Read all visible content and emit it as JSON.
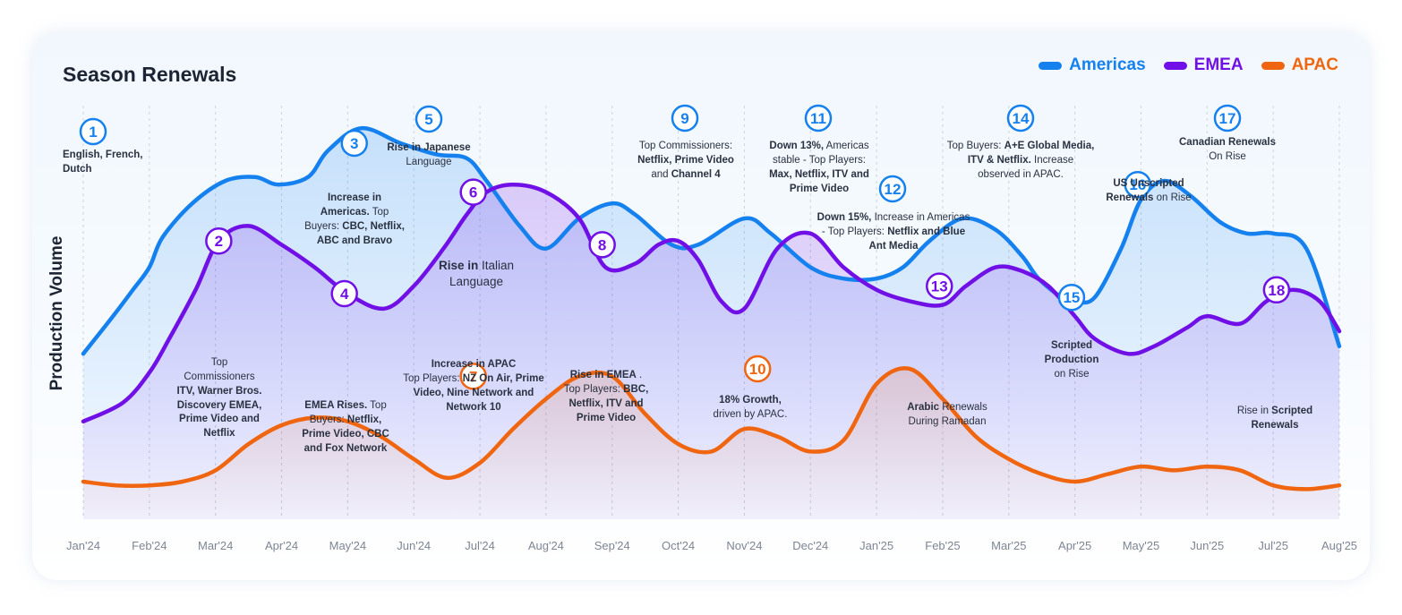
{
  "chart_data": {
    "type": "area",
    "title": "Season Renewals",
    "ylabel": "Production Volume",
    "xlabel": "",
    "categories": [
      "Jan'24",
      "Feb'24",
      "Mar'24",
      "Apr'24",
      "May'24",
      "Jun'24",
      "Jul'24",
      "Aug'24",
      "Sep'24",
      "Oct'24",
      "Nov'24",
      "Dec'24",
      "Jan'25",
      "Feb'25",
      "Mar'25",
      "Apr'25",
      "May'25",
      "Jun'25",
      "Jul'25",
      "Aug'25"
    ],
    "ylim": [
      0,
      100
    ],
    "grid": true,
    "legend_position": "top-right",
    "series": [
      {
        "name": "Americas",
        "color": "#1581ef",
        "x": [
          0,
          0.45,
          0.75,
          1,
          1.2,
          1.65,
          2.15,
          2.6,
          2.95,
          3.4,
          3.7,
          4.2,
          4.8,
          5.35,
          5.8,
          6.1,
          6.6,
          7,
          7.5,
          8,
          8.35,
          8.9,
          9.3,
          10,
          10.4,
          11,
          11.5,
          12,
          12.4,
          12.8,
          13.3,
          13.8,
          14.2,
          14.45,
          14.8,
          15,
          15.3,
          15.7,
          16,
          16.35,
          16.75,
          17.2,
          17.6,
          18,
          18.5,
          19
        ],
        "y": [
          44,
          54,
          61,
          67,
          75,
          84,
          90,
          91,
          89,
          91,
          98,
          104,
          100,
          97,
          96,
          90,
          78,
          72,
          80,
          84,
          81,
          73,
          73,
          80,
          76,
          67,
          64,
          64,
          67,
          74,
          80,
          77,
          70,
          64,
          59,
          58,
          59,
          72,
          85,
          90,
          86,
          79,
          76,
          76,
          72,
          46
        ]
      },
      {
        "name": "EMEA",
        "color": "#7010e6",
        "x": [
          0,
          0.6,
          1,
          1.3,
          1.7,
          2.05,
          2.5,
          3,
          3.5,
          4,
          4.55,
          5,
          5.45,
          5.8,
          6.1,
          6.5,
          7,
          7.5,
          7.9,
          8.35,
          8.7,
          9,
          9.3,
          9.65,
          10,
          10.5,
          11,
          11.5,
          12,
          12.5,
          13,
          13.35,
          13.8,
          14.2,
          14.6,
          15,
          15.3,
          15.8,
          16.2,
          16.7,
          17,
          17.5,
          17.9,
          18.3,
          18.7,
          19
        ],
        "y": [
          26,
          31,
          39,
          48,
          61,
          74,
          78,
          73,
          67,
          60,
          56,
          62,
          72,
          81,
          87,
          89,
          87,
          80,
          67,
          68,
          73,
          74,
          69,
          58,
          56,
          72,
          76,
          67,
          61,
          58,
          57,
          62,
          67,
          66,
          62,
          54,
          48,
          44,
          46,
          51,
          54,
          52,
          58,
          61,
          58,
          50
        ]
      },
      {
        "name": "APAC",
        "color": "#f0650f",
        "x": [
          0,
          0.5,
          1,
          1.5,
          2,
          2.5,
          3,
          3.5,
          4,
          4.5,
          5,
          5.5,
          6,
          6.5,
          7,
          7.5,
          8,
          8.5,
          9,
          9.5,
          10,
          10.5,
          11,
          11.5,
          12,
          12.5,
          13,
          13.5,
          14,
          14.5,
          15,
          15.5,
          16,
          16.5,
          17,
          17.5,
          18,
          18.5,
          19
        ],
        "y": [
          10,
          9,
          9,
          10,
          13,
          20,
          25,
          27,
          26,
          22,
          16,
          11,
          15,
          24,
          32,
          38,
          38,
          28,
          20,
          18,
          24,
          22,
          18,
          21,
          36,
          40,
          32,
          22,
          16,
          12,
          10,
          12,
          14,
          13,
          14,
          13,
          9,
          8,
          9
        ]
      }
    ],
    "markers": [
      {
        "id": "1",
        "series": "Americas",
        "x": 0.18,
        "y": null
      },
      {
        "id": "2",
        "series": "EMEA",
        "x": 2.05,
        "y": 74
      },
      {
        "id": "3",
        "series": "Americas",
        "x": 4.1,
        "y": 100
      },
      {
        "id": "4",
        "series": "EMEA",
        "x": 3.95,
        "y": 60
      },
      {
        "id": "5",
        "series": "Americas",
        "x": 5.25,
        "y": null
      },
      {
        "id": "6",
        "series": "EMEA",
        "x": 5.9,
        "y": 87
      },
      {
        "id": "7",
        "series": "APAC",
        "x": 5.9,
        "y": 38
      },
      {
        "id": "8",
        "series": "EMEA",
        "x": 7.85,
        "y": 73
      },
      {
        "id": "9",
        "series": "Americas",
        "x": 9.15,
        "y": null
      },
      {
        "id": "10",
        "series": "APAC",
        "x": 10.2,
        "y": 40
      },
      {
        "id": "11",
        "series": "Americas",
        "x": 11.15,
        "y": null
      },
      {
        "id": "12",
        "series": "Americas",
        "x": 12.25,
        "y": null
      },
      {
        "id": "13",
        "series": "EMEA",
        "x": 12.95,
        "y": 62
      },
      {
        "id": "14",
        "series": "Americas",
        "x": 14.45,
        "y": null
      },
      {
        "id": "15",
        "series": "Americas",
        "x": 14.95,
        "y": 59
      },
      {
        "id": "16",
        "series": "Americas",
        "x": 15.95,
        "y": 89
      },
      {
        "id": "17",
        "series": "Americas",
        "x": 17.3,
        "y": null
      },
      {
        "id": "18",
        "series": "EMEA",
        "x": 18.05,
        "y": 61
      }
    ]
  },
  "annotations": [
    {
      "id": "1",
      "parts": [
        [
          "English, French,",
          true
        ],
        [
          "\n",
          false
        ],
        [
          "Dutch",
          true
        ]
      ]
    },
    {
      "id": "2",
      "parts": [
        [
          "Top",
          false
        ],
        [
          "\n",
          false
        ],
        [
          "Commissioners",
          false
        ],
        [
          "\n",
          false
        ],
        [
          "ITV, Warner Bros.",
          true
        ],
        [
          "\n",
          false
        ],
        [
          "Discovery EMEA,",
          true
        ],
        [
          "\n",
          false
        ],
        [
          "Prime Video and",
          true
        ],
        [
          "\n",
          false
        ],
        [
          "Netflix",
          true
        ]
      ]
    },
    {
      "id": "3",
      "parts": [
        [
          "Increase in",
          true
        ],
        [
          "\n",
          false
        ],
        [
          "Americas.",
          true
        ],
        [
          " Top",
          false
        ],
        [
          "\n",
          false
        ],
        [
          "Buyers: ",
          false
        ],
        [
          "CBC, Netflix,",
          true
        ],
        [
          "\n",
          false
        ],
        [
          "ABC and Bravo",
          true
        ]
      ]
    },
    {
      "id": "4",
      "parts": [
        [
          "EMEA Rises.",
          true
        ],
        [
          " Top",
          false
        ],
        [
          "\n",
          false
        ],
        [
          "Buyers: ",
          false
        ],
        [
          "Netflix,",
          true
        ],
        [
          "\n",
          false
        ],
        [
          "Prime Video, CBC",
          true
        ],
        [
          "\n",
          false
        ],
        [
          "and Fox Network",
          true
        ]
      ]
    },
    {
      "id": "5",
      "parts": [
        [
          "Rise in Japanese",
          true
        ],
        [
          "\n",
          false
        ],
        [
          "Language",
          false
        ]
      ]
    },
    {
      "id": "6",
      "parts": [
        [
          "Rise in",
          true
        ],
        [
          " Italian",
          false
        ],
        [
          "\n",
          false
        ],
        [
          "Language",
          false
        ]
      ]
    },
    {
      "id": "7",
      "parts": [
        [
          "Increase in APAC",
          true
        ],
        [
          "\n",
          false
        ],
        [
          "Top Players: ",
          false
        ],
        [
          "NZ On Air, Prime",
          true
        ],
        [
          "\n",
          false
        ],
        [
          "Video, Nine Network and",
          true
        ],
        [
          "\n",
          false
        ],
        [
          "Network 10",
          true
        ]
      ]
    },
    {
      "id": "8",
      "parts": [
        [
          "Rise in EMEA",
          true
        ],
        [
          " .",
          false
        ],
        [
          "\n",
          false
        ],
        [
          "Top Players: ",
          false
        ],
        [
          "BBC,",
          true
        ],
        [
          "\n",
          false
        ],
        [
          "Netflix, ITV and",
          true
        ],
        [
          "\n",
          false
        ],
        [
          "Prime Video",
          true
        ]
      ]
    },
    {
      "id": "9",
      "parts": [
        [
          "Top Commissioners:",
          false
        ],
        [
          "\n",
          false
        ],
        [
          "Netflix, Prime Video",
          true
        ],
        [
          "\n",
          false
        ],
        [
          "and ",
          false
        ],
        [
          "Channel 4",
          true
        ]
      ]
    },
    {
      "id": "10",
      "parts": [
        [
          "18% Growth,",
          true
        ],
        [
          "\n",
          false
        ],
        [
          "driven by APAC.",
          false
        ]
      ]
    },
    {
      "id": "11",
      "parts": [
        [
          "Down 13%,",
          true
        ],
        [
          " Americas",
          false
        ],
        [
          "\n",
          false
        ],
        [
          "stable -  Top Players:",
          false
        ],
        [
          "\n",
          false
        ],
        [
          "Max, Netflix, ITV and",
          true
        ],
        [
          "\n",
          false
        ],
        [
          "Prime Video",
          true
        ]
      ]
    },
    {
      "id": "12",
      "parts": [
        [
          "Down 15%,",
          true
        ],
        [
          " Increase in Americas",
          false
        ],
        [
          "\n",
          false
        ],
        [
          "- Top Players: ",
          false
        ],
        [
          "Netflix and Blue",
          true
        ],
        [
          "\n",
          false
        ],
        [
          "Ant Media",
          true
        ]
      ]
    },
    {
      "id": "13",
      "parts": [
        [
          "Arabic",
          true
        ],
        [
          " Renewals",
          false
        ],
        [
          "\n",
          false
        ],
        [
          "During Ramadan",
          false
        ]
      ]
    },
    {
      "id": "14",
      "parts": [
        [
          "Top Buyers: ",
          false
        ],
        [
          "A+E Global Media,",
          true
        ],
        [
          "\n",
          false
        ],
        [
          "ITV & Netflix.",
          true
        ],
        [
          " Increase",
          false
        ],
        [
          "\n",
          false
        ],
        [
          "observed in APAC.",
          false
        ]
      ]
    },
    {
      "id": "15",
      "parts": [
        [
          "Scripted",
          true
        ],
        [
          "\n",
          false
        ],
        [
          "Production",
          true
        ],
        [
          "\n",
          false
        ],
        [
          "on Rise",
          false
        ]
      ]
    },
    {
      "id": "16",
      "parts": [
        [
          "US Unscripted",
          true
        ],
        [
          "\n",
          false
        ],
        [
          "Renewals",
          true
        ],
        [
          " on Rise",
          false
        ]
      ]
    },
    {
      "id": "17",
      "parts": [
        [
          "Canadian Renewals",
          true
        ],
        [
          "\n",
          false
        ],
        [
          "On Rise",
          false
        ]
      ]
    },
    {
      "id": "18",
      "parts": [
        [
          "Rise in ",
          false
        ],
        [
          "Scripted",
          true
        ],
        [
          "\n",
          false
        ],
        [
          "Renewals",
          true
        ]
      ]
    }
  ]
}
